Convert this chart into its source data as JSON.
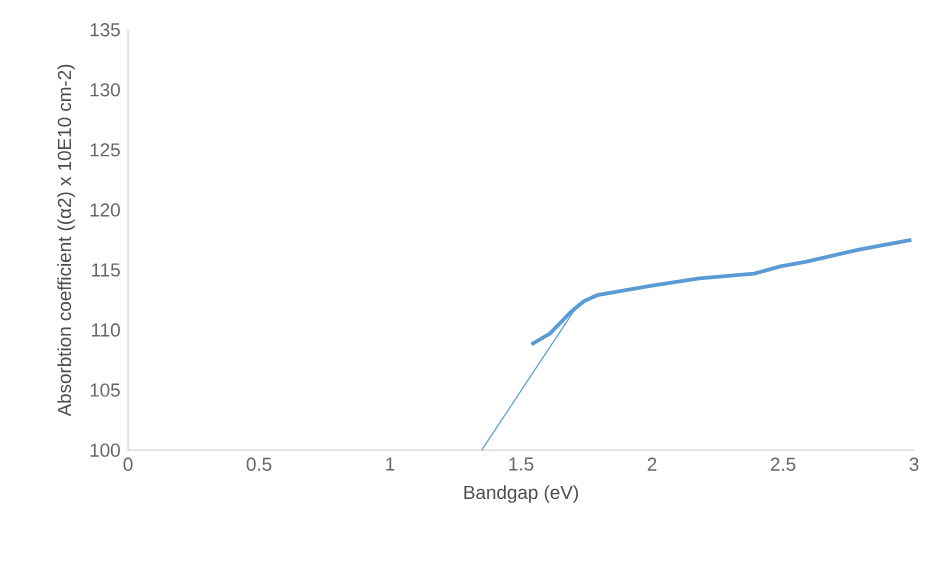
{
  "chart_data": {
    "type": "line",
    "xlabel": "Bandgap (eV)",
    "ylabel": "Absorbtion coefficient ((α2) x 10E10 cm-2)",
    "xlim": [
      0,
      3
    ],
    "xticks": [
      0,
      0.5,
      1,
      1.5,
      2,
      2.5,
      3
    ],
    "ylim": [
      100,
      135
    ],
    "yticks": [
      100,
      105,
      110,
      115,
      120,
      125,
      130,
      135
    ],
    "grid": false,
    "marker": "none",
    "series": [
      {
        "color": "#5b9bd5",
        "x": [
          1.54,
          1.61,
          1.69,
          1.74,
          1.79,
          2.0,
          2.18,
          2.39,
          2.49,
          2.59,
          2.79,
          2.99
        ],
        "values": [
          108.8,
          109.7,
          111.5,
          112.4,
          112.9,
          113.7,
          114.3,
          114.7,
          115.3,
          115.7,
          116.7,
          117.5
        ]
      },
      {
        "type": "line",
        "color": "#5b9bd5",
        "x": [
          1.35,
          1.72
        ],
        "values": [
          100,
          112.2
        ]
      }
    ]
  }
}
